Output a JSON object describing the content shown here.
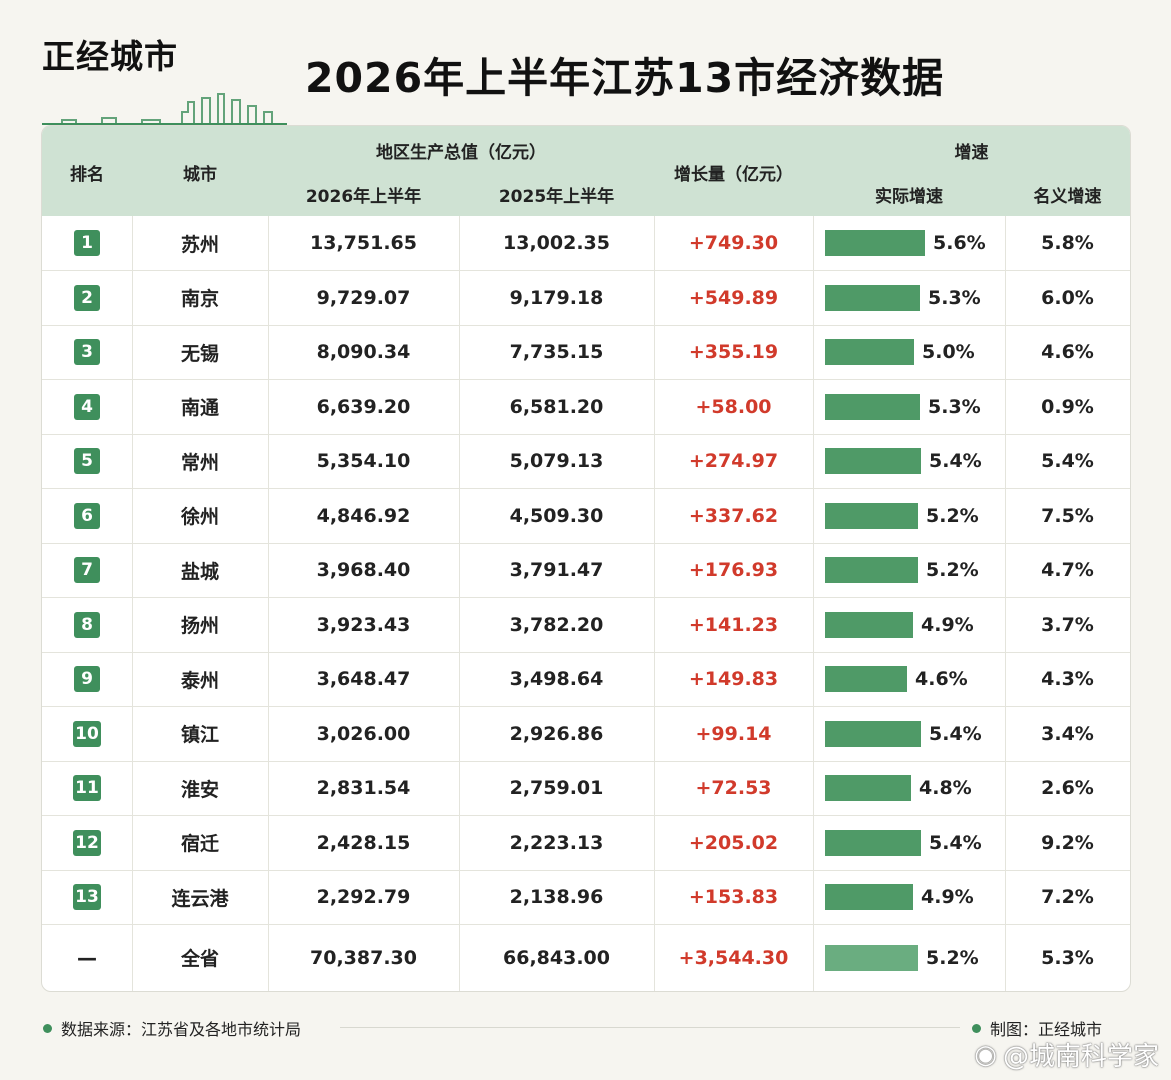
{
  "brand": {
    "name": "正经城市",
    "accent": "#3f8f5c",
    "header_bg": "#cfe2d3",
    "gain_color": "#d13a2b"
  },
  "title": "2026年上半年江苏13市经济数据",
  "headers": {
    "rank": "排名",
    "city": "城市",
    "gdp_group": "地区生产总值（亿元）",
    "gdp_2026": "2026年上半年",
    "gdp_2025": "2025年上半年",
    "increase": "增长量（亿元）",
    "growth_group": "增速",
    "real": "实际增速",
    "nominal": "名义增速"
  },
  "chart_data": {
    "type": "table",
    "title": "2026年上半年江苏13市经济数据",
    "bar_column": "实际增速",
    "rows": [
      {
        "rank": "1",
        "city": "苏州",
        "gdp_2026": "13,751.65",
        "gdp_2025": "13,002.35",
        "increase": "+749.30",
        "real_growth": 5.6,
        "real_label": "5.6%",
        "nominal": "5.8%"
      },
      {
        "rank": "2",
        "city": "南京",
        "gdp_2026": "9,729.07",
        "gdp_2025": "9,179.18",
        "increase": "+549.89",
        "real_growth": 5.3,
        "real_label": "5.3%",
        "nominal": "6.0%"
      },
      {
        "rank": "3",
        "city": "无锡",
        "gdp_2026": "8,090.34",
        "gdp_2025": "7,735.15",
        "increase": "+355.19",
        "real_growth": 5.0,
        "real_label": "5.0%",
        "nominal": "4.6%"
      },
      {
        "rank": "4",
        "city": "南通",
        "gdp_2026": "6,639.20",
        "gdp_2025": "6,581.20",
        "increase": "+58.00",
        "real_growth": 5.3,
        "real_label": "5.3%",
        "nominal": "0.9%"
      },
      {
        "rank": "5",
        "city": "常州",
        "gdp_2026": "5,354.10",
        "gdp_2025": "5,079.13",
        "increase": "+274.97",
        "real_growth": 5.4,
        "real_label": "5.4%",
        "nominal": "5.4%"
      },
      {
        "rank": "6",
        "city": "徐州",
        "gdp_2026": "4,846.92",
        "gdp_2025": "4,509.30",
        "increase": "+337.62",
        "real_growth": 5.2,
        "real_label": "5.2%",
        "nominal": "7.5%"
      },
      {
        "rank": "7",
        "city": "盐城",
        "gdp_2026": "3,968.40",
        "gdp_2025": "3,791.47",
        "increase": "+176.93",
        "real_growth": 5.2,
        "real_label": "5.2%",
        "nominal": "4.7%"
      },
      {
        "rank": "8",
        "city": "扬州",
        "gdp_2026": "3,923.43",
        "gdp_2025": "3,782.20",
        "increase": "+141.23",
        "real_growth": 4.9,
        "real_label": "4.9%",
        "nominal": "3.7%"
      },
      {
        "rank": "9",
        "city": "泰州",
        "gdp_2026": "3,648.47",
        "gdp_2025": "3,498.64",
        "increase": "+149.83",
        "real_growth": 4.6,
        "real_label": "4.6%",
        "nominal": "4.3%"
      },
      {
        "rank": "10",
        "city": "镇江",
        "gdp_2026": "3,026.00",
        "gdp_2025": "2,926.86",
        "increase": "+99.14",
        "real_growth": 5.4,
        "real_label": "5.4%",
        "nominal": "3.4%"
      },
      {
        "rank": "11",
        "city": "淮安",
        "gdp_2026": "2,831.54",
        "gdp_2025": "2,759.01",
        "increase": "+72.53",
        "real_growth": 4.8,
        "real_label": "4.8%",
        "nominal": "2.6%"
      },
      {
        "rank": "12",
        "city": "宿迁",
        "gdp_2026": "2,428.15",
        "gdp_2025": "2,223.13",
        "increase": "+205.02",
        "real_growth": 5.4,
        "real_label": "5.4%",
        "nominal": "9.2%"
      },
      {
        "rank": "13",
        "city": "连云港",
        "gdp_2026": "2,292.79",
        "gdp_2025": "2,138.96",
        "increase": "+153.83",
        "real_growth": 4.9,
        "real_label": "4.9%",
        "nominal": "7.2%"
      }
    ],
    "total": {
      "rank": "—",
      "city": "全省",
      "gdp_2026": "70,387.30",
      "gdp_2025": "66,843.00",
      "increase": "+3,544.30",
      "real_growth": 5.2,
      "real_label": "5.2%",
      "nominal": "5.3%"
    },
    "bar_max": 5.6
  },
  "footer": {
    "source": "数据来源：江苏省及各地市统计局",
    "credit": "制图：正经城市"
  },
  "watermark": "@城南科学家"
}
